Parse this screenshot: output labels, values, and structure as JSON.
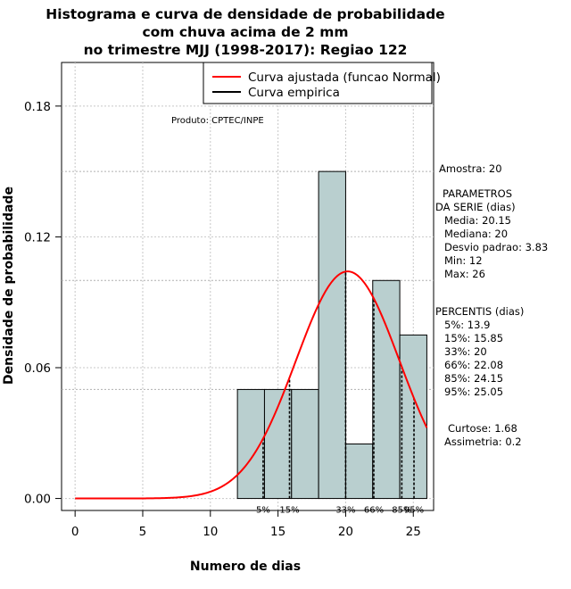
{
  "chart_data": {
    "type": "bar",
    "title_lines": [
      "Histograma e curva de densidade de probabilidade",
      "com chuva acima de 2 mm",
      "no trimestre MJJ (1998-2017): Regiao 122"
    ],
    "xlabel": "Numero de dias",
    "ylabel": "Densidade de probabilidade",
    "xlim": [
      -1,
      26.5
    ],
    "ylim": [
      -0.0055,
      0.2
    ],
    "x_ticks": [
      0,
      5,
      10,
      15,
      20,
      25
    ],
    "x_tick_labels": [
      "0",
      "5",
      "10",
      "15",
      "20",
      "25"
    ],
    "y_ticks": [
      0.0,
      0.06,
      0.12,
      0.18
    ],
    "y_tick_labels": [
      "0.00",
      "0.06",
      "0.12",
      "0.18"
    ],
    "bins": [
      {
        "start": 12,
        "end": 14,
        "density": 0.05
      },
      {
        "start": 14,
        "end": 16,
        "density": 0.05
      },
      {
        "start": 16,
        "end": 18,
        "density": 0.05
      },
      {
        "start": 18,
        "end": 20,
        "density": 0.15
      },
      {
        "start": 20,
        "end": 22,
        "density": 0.025
      },
      {
        "start": 22,
        "end": 24,
        "density": 0.1
      },
      {
        "start": 24,
        "end": 26,
        "density": 0.075
      }
    ],
    "bar_fill": "#b9cfcf",
    "normal_curve": {
      "mean": 20.15,
      "sd": 3.83,
      "x_start": 0,
      "x_end": 26,
      "color": "#ff0000"
    },
    "percentile_lines": [
      {
        "label": "5%",
        "x": 13.9
      },
      {
        "label": "15%",
        "x": 15.85
      },
      {
        "label": "33%",
        "x": 20
      },
      {
        "label": "66%",
        "x": 22.08
      },
      {
        "label": "85%",
        "x": 24.15
      },
      {
        "label": "95%",
        "x": 25.05
      }
    ],
    "horizontal_reflines": [
      0.15,
      0.1,
      0.05
    ],
    "legend": [
      {
        "label": "Curva ajustada (funcao Normal)",
        "color": "#ff0000"
      },
      {
        "label": "Curva empirica",
        "color": "#000000"
      }
    ],
    "legend_position": "top-right",
    "product_label": "Produto: CPTEC/INPE",
    "side_panel": {
      "amostra": "Amostra: 20",
      "parametros_title": [
        "PARAMETROS",
        "DA SERIE (dias)"
      ],
      "parametros": [
        "Media: 20.15",
        "Mediana: 20",
        "Desvio padrao: 3.83",
        "Min: 12",
        "Max: 26"
      ],
      "percentis_title": "PERCENTIS (dias)",
      "percentis": [
        "5%: 13.9",
        "15%: 15.85",
        "33%: 20",
        "66%: 22.08",
        "85%: 24.15",
        "95%: 25.05"
      ],
      "curtose": "Curtose: 1.68",
      "assimetria": "Assimetria: 0.2"
    }
  }
}
